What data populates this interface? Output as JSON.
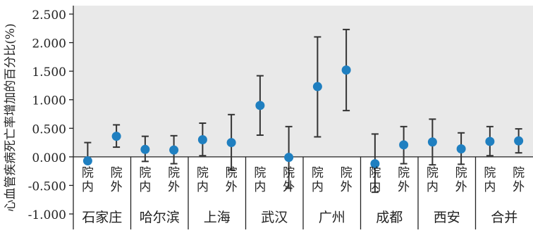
{
  "chart_data": {
    "type": "scatter",
    "ylabel": "心血管疾病死亡率增加的百分比(%)",
    "ylim": [
      -1.0,
      2.5
    ],
    "yticks": [
      2.5,
      2.0,
      1.5,
      1.0,
      0.5,
      0.0,
      -0.5,
      -1.0
    ],
    "ytick_labels": [
      "2.500",
      "2.000",
      "1.500",
      "1.000",
      "0.500",
      "0.000",
      "-0.500",
      "-1.000"
    ],
    "grid": false,
    "colors": {
      "point": "#1f7fc0",
      "errorbar": "#333333",
      "axis": "#222222",
      "panel": "#e9e9e9"
    },
    "groups": [
      {
        "name": "石家庄",
        "points": [
          {
            "label": "院内",
            "value": -0.07,
            "lower": -0.07,
            "upper": 0.25
          },
          {
            "label": "院外",
            "value": 0.36,
            "lower": 0.17,
            "upper": 0.56
          }
        ]
      },
      {
        "name": "哈尔滨",
        "points": [
          {
            "label": "院内",
            "value": 0.13,
            "lower": -0.08,
            "upper": 0.36
          },
          {
            "label": "院外",
            "value": 0.12,
            "lower": -0.12,
            "upper": 0.37
          }
        ]
      },
      {
        "name": "上海",
        "points": [
          {
            "label": "院内",
            "value": 0.3,
            "lower": 0.02,
            "upper": 0.59
          },
          {
            "label": "院外",
            "value": 0.25,
            "lower": -0.23,
            "upper": 0.74
          }
        ]
      },
      {
        "name": "武汉",
        "points": [
          {
            "label": "院内",
            "value": 0.9,
            "lower": 0.38,
            "upper": 1.42
          },
          {
            "label": "院外",
            "value": -0.01,
            "lower": -0.55,
            "upper": 0.53
          }
        ]
      },
      {
        "name": "广州",
        "points": [
          {
            "label": "院内",
            "value": 1.23,
            "lower": 0.35,
            "upper": 2.1
          },
          {
            "label": "院外",
            "value": 1.52,
            "lower": 0.81,
            "upper": 2.23
          }
        ]
      },
      {
        "name": "成都",
        "points": [
          {
            "label": "院内",
            "value": -0.12,
            "lower": -0.62,
            "upper": 0.4
          },
          {
            "label": "院外",
            "value": 0.21,
            "lower": -0.12,
            "upper": 0.53
          }
        ]
      },
      {
        "name": "西安",
        "points": [
          {
            "label": "院内",
            "value": 0.26,
            "lower": -0.14,
            "upper": 0.66
          },
          {
            "label": "院外",
            "value": 0.14,
            "lower": -0.13,
            "upper": 0.42
          }
        ]
      },
      {
        "name": "合并",
        "points": [
          {
            "label": "院内",
            "value": 0.27,
            "lower": 0.02,
            "upper": 0.53
          },
          {
            "label": "院外",
            "value": 0.28,
            "lower": 0.07,
            "upper": 0.49
          }
        ]
      }
    ]
  }
}
